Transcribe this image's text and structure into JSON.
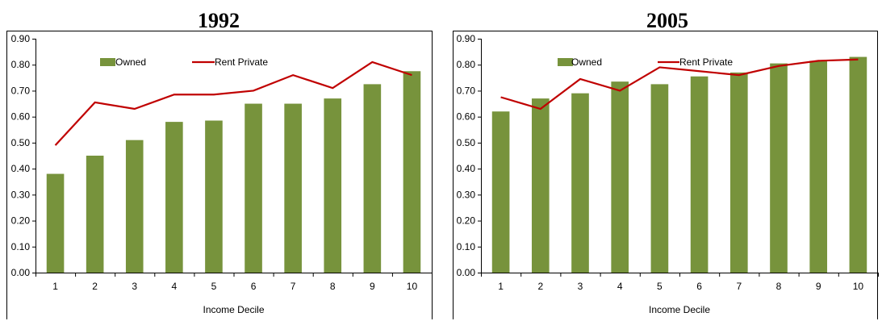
{
  "chart_data": [
    {
      "type": "bar",
      "title": "1992",
      "xlabel": "Income Decile",
      "ylabel": "",
      "ylim": [
        0,
        0.9
      ],
      "yticks": [
        "0.00",
        "0.10",
        "0.20",
        "0.30",
        "0.40",
        "0.50",
        "0.60",
        "0.70",
        "0.80",
        "0.90"
      ],
      "categories": [
        "1",
        "2",
        "3",
        "4",
        "5",
        "6",
        "7",
        "8",
        "9",
        "10"
      ],
      "grid": false,
      "legend": "top",
      "series": [
        {
          "name": "Owned",
          "kind": "bar",
          "color": "#77933c",
          "values": [
            0.38,
            0.45,
            0.51,
            0.58,
            0.585,
            0.65,
            0.65,
            0.67,
            0.725,
            0.775
          ]
        },
        {
          "name": "Rent Private",
          "kind": "line",
          "color": "#c00000",
          "values": [
            0.49,
            0.655,
            0.63,
            0.685,
            0.685,
            0.7,
            0.76,
            0.71,
            0.81,
            0.76
          ]
        }
      ]
    },
    {
      "type": "bar",
      "title": "2005",
      "xlabel": "Income Decile",
      "ylabel": "",
      "ylim": [
        0,
        0.9
      ],
      "yticks": [
        "0.00",
        "0.10",
        "0.20",
        "0.30",
        "0.40",
        "0.50",
        "0.60",
        "0.70",
        "0.80",
        "0.90"
      ],
      "categories": [
        "1",
        "2",
        "3",
        "4",
        "5",
        "6",
        "7",
        "8",
        "9",
        "10"
      ],
      "grid": false,
      "legend": "top",
      "series": [
        {
          "name": "Owned",
          "kind": "bar",
          "color": "#77933c",
          "values": [
            0.62,
            0.67,
            0.69,
            0.735,
            0.725,
            0.755,
            0.77,
            0.805,
            0.815,
            0.83
          ]
        },
        {
          "name": "Rent Private",
          "kind": "line",
          "color": "#c00000",
          "values": [
            0.675,
            0.63,
            0.745,
            0.7,
            0.79,
            0.775,
            0.76,
            0.795,
            0.815,
            0.82
          ]
        }
      ]
    }
  ]
}
